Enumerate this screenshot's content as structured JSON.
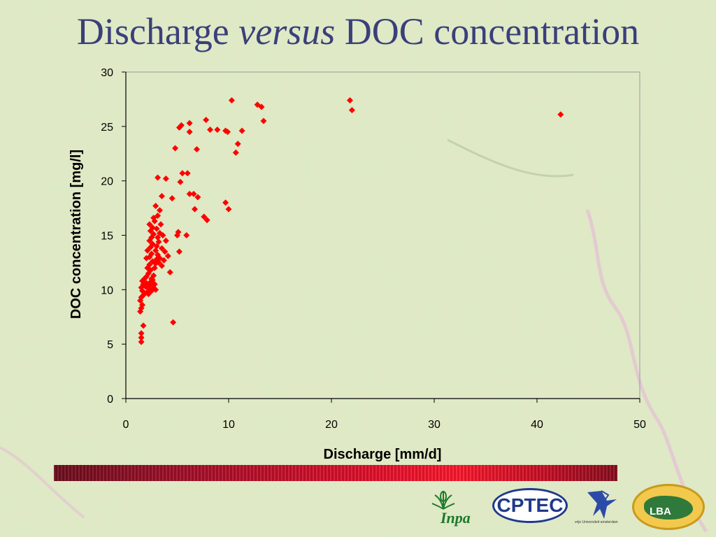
{
  "slide": {
    "title_pre": "Discharge ",
    "title_em": "versus",
    "title_post": " DOC concentration"
  },
  "colors": {
    "background": "#dfe9c4",
    "title": "#3b3f7a",
    "marker": "#ff0000",
    "axis": "#000000"
  },
  "logos": {
    "inpa": {
      "text": "Inpa",
      "icon": "leaf-plant-icon"
    },
    "cptec": {
      "text": "CPTEC"
    },
    "vu": {
      "text": "vrije Universiteit amsterdam",
      "icon": "griffin-icon"
    },
    "lba": {
      "text": "LBA"
    }
  },
  "chart_data": {
    "type": "scatter",
    "title": "",
    "xlabel": "Discharge [mm/d]",
    "ylabel": "DOC concentration [mg/l]",
    "xlim": [
      0,
      50
    ],
    "ylim": [
      0,
      30
    ],
    "xticks": [
      0,
      10,
      20,
      30,
      40,
      50
    ],
    "yticks": [
      0,
      5,
      10,
      15,
      20,
      25,
      30
    ],
    "marker": "diamond",
    "grid": false,
    "points": [
      [
        1.5,
        5.2
      ],
      [
        1.5,
        5.6
      ],
      [
        1.5,
        6.0
      ],
      [
        1.7,
        6.7
      ],
      [
        1.4,
        8.0
      ],
      [
        1.5,
        8.3
      ],
      [
        1.6,
        8.6
      ],
      [
        1.4,
        9.0
      ],
      [
        1.5,
        9.3
      ],
      [
        1.7,
        9.5
      ],
      [
        1.8,
        9.7
      ],
      [
        1.6,
        9.9
      ],
      [
        1.5,
        10.2
      ],
      [
        1.7,
        10.5
      ],
      [
        1.6,
        10.8
      ],
      [
        1.8,
        11.0
      ],
      [
        1.9,
        10.3
      ],
      [
        2.0,
        10.6
      ],
      [
        2.1,
        9.8
      ],
      [
        2.2,
        10.1
      ],
      [
        2.3,
        10.4
      ],
      [
        2.4,
        10.7
      ],
      [
        2.5,
        11.0
      ],
      [
        2.0,
        11.2
      ],
      [
        2.2,
        11.5
      ],
      [
        2.4,
        11.8
      ],
      [
        2.1,
        12.0
      ],
      [
        2.3,
        12.3
      ],
      [
        2.6,
        12.6
      ],
      [
        2.0,
        12.9
      ],
      [
        2.2,
        9.6
      ],
      [
        2.5,
        9.9
      ],
      [
        2.7,
        10.2
      ],
      [
        2.8,
        10.5
      ],
      [
        2.9,
        10.0
      ],
      [
        2.6,
        10.9
      ],
      [
        2.7,
        11.3
      ],
      [
        2.3,
        13.0
      ],
      [
        2.5,
        13.3
      ],
      [
        2.1,
        13.6
      ],
      [
        2.4,
        13.9
      ],
      [
        2.6,
        14.2
      ],
      [
        2.3,
        14.5
      ],
      [
        2.5,
        14.8
      ],
      [
        2.7,
        15.1
      ],
      [
        2.4,
        15.4
      ],
      [
        2.6,
        15.7
      ],
      [
        2.3,
        16.0
      ],
      [
        2.8,
        12.0
      ],
      [
        2.9,
        12.4
      ],
      [
        3.0,
        12.8
      ],
      [
        3.1,
        13.2
      ],
      [
        3.2,
        12.5
      ],
      [
        3.3,
        12.9
      ],
      [
        2.9,
        13.6
      ],
      [
        3.0,
        14.0
      ],
      [
        3.2,
        14.4
      ],
      [
        3.1,
        14.8
      ],
      [
        3.3,
        15.2
      ],
      [
        3.0,
        15.6
      ],
      [
        2.8,
        16.3
      ],
      [
        3.4,
        16.0
      ],
      [
        2.7,
        16.6
      ],
      [
        3.1,
        16.8
      ],
      [
        2.9,
        17.7
      ],
      [
        3.3,
        17.3
      ],
      [
        3.5,
        13.8
      ],
      [
        3.6,
        15.0
      ],
      [
        3.5,
        12.2
      ],
      [
        3.7,
        12.7
      ],
      [
        3.8,
        13.5
      ],
      [
        4.1,
        13.1
      ],
      [
        3.9,
        14.5
      ],
      [
        4.3,
        11.6
      ],
      [
        3.5,
        18.6
      ],
      [
        4.6,
        7.0
      ],
      [
        4.5,
        18.4
      ],
      [
        3.1,
        20.3
      ],
      [
        3.9,
        20.2
      ],
      [
        5.2,
        13.5
      ],
      [
        5.0,
        15.0
      ],
      [
        5.1,
        15.3
      ],
      [
        5.9,
        15.0
      ],
      [
        5.3,
        19.9
      ],
      [
        5.5,
        20.7
      ],
      [
        6.0,
        20.7
      ],
      [
        6.2,
        18.8
      ],
      [
        6.6,
        18.8
      ],
      [
        7.0,
        18.5
      ],
      [
        6.7,
        17.4
      ],
      [
        7.6,
        16.7
      ],
      [
        7.9,
        16.4
      ],
      [
        4.8,
        23.0
      ],
      [
        5.2,
        24.9
      ],
      [
        5.4,
        25.1
      ],
      [
        6.2,
        24.5
      ],
      [
        6.2,
        25.3
      ],
      [
        6.9,
        22.9
      ],
      [
        7.8,
        25.6
      ],
      [
        8.2,
        24.7
      ],
      [
        8.9,
        24.7
      ],
      [
        9.7,
        24.6
      ],
      [
        9.9,
        24.5
      ],
      [
        9.7,
        18.0
      ],
      [
        10.0,
        17.4
      ],
      [
        10.3,
        27.4
      ],
      [
        10.7,
        22.6
      ],
      [
        10.9,
        23.4
      ],
      [
        11.3,
        24.6
      ],
      [
        12.8,
        27.0
      ],
      [
        13.2,
        26.8
      ],
      [
        13.4,
        25.5
      ],
      [
        21.8,
        27.4
      ],
      [
        22.0,
        26.5
      ],
      [
        42.3,
        26.1
      ]
    ]
  }
}
